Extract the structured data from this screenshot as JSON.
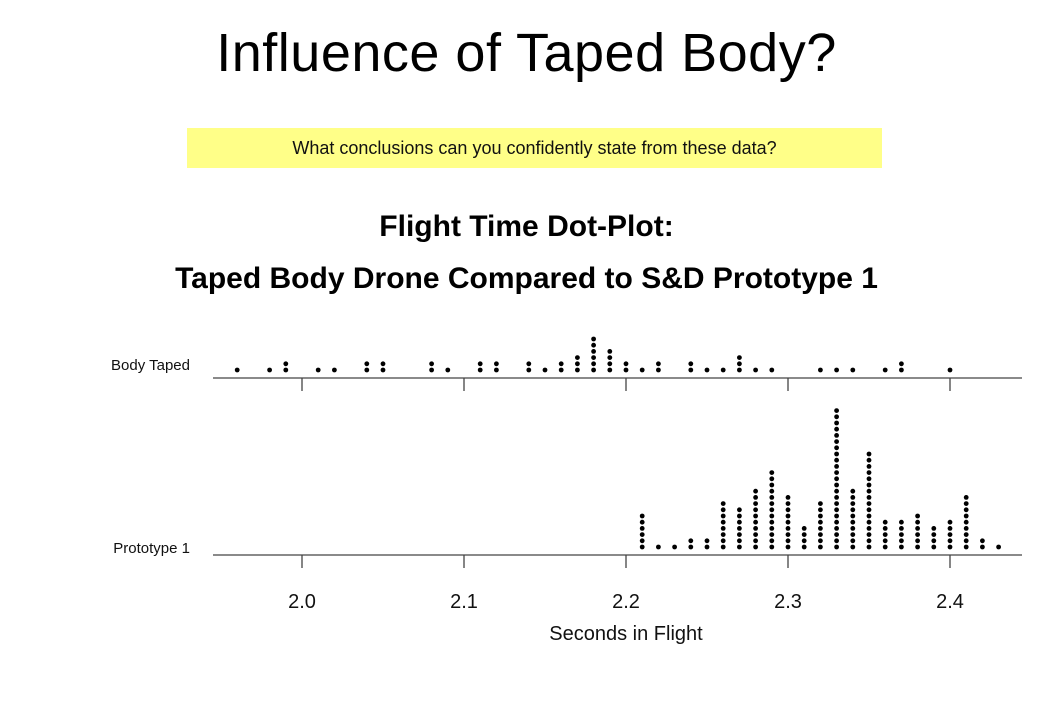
{
  "slide": {
    "title": "Influence of Taped Body?",
    "prompt": "What conclusions can you confidently state from these data?"
  },
  "chart_data": {
    "type": "scatter",
    "subtype": "dot-plot",
    "title": [
      "Flight Time Dot-Plot:",
      "Taped Body Drone Compared to S&D Prototype 1"
    ],
    "xlabel": "Seconds in Flight",
    "xlim": [
      1.96,
      2.44
    ],
    "xticks": [
      2.0,
      2.1,
      2.2,
      2.3,
      2.4
    ],
    "xtick_labels": [
      "2.0",
      "2.1",
      "2.2",
      "2.3",
      "2.4"
    ],
    "series": [
      {
        "name": "Body Taped",
        "points": [
          {
            "x": 1.96,
            "count": 1
          },
          {
            "x": 1.98,
            "count": 1
          },
          {
            "x": 1.99,
            "count": 2
          },
          {
            "x": 2.01,
            "count": 1
          },
          {
            "x": 2.02,
            "count": 1
          },
          {
            "x": 2.04,
            "count": 2
          },
          {
            "x": 2.05,
            "count": 2
          },
          {
            "x": 2.08,
            "count": 2
          },
          {
            "x": 2.09,
            "count": 1
          },
          {
            "x": 2.11,
            "count": 2
          },
          {
            "x": 2.12,
            "count": 2
          },
          {
            "x": 2.14,
            "count": 2
          },
          {
            "x": 2.15,
            "count": 1
          },
          {
            "x": 2.16,
            "count": 2
          },
          {
            "x": 2.17,
            "count": 3
          },
          {
            "x": 2.18,
            "count": 6
          },
          {
            "x": 2.19,
            "count": 4
          },
          {
            "x": 2.2,
            "count": 2
          },
          {
            "x": 2.21,
            "count": 1
          },
          {
            "x": 2.22,
            "count": 2
          },
          {
            "x": 2.24,
            "count": 2
          },
          {
            "x": 2.25,
            "count": 1
          },
          {
            "x": 2.26,
            "count": 1
          },
          {
            "x": 2.27,
            "count": 3
          },
          {
            "x": 2.28,
            "count": 1
          },
          {
            "x": 2.29,
            "count": 1
          },
          {
            "x": 2.32,
            "count": 1
          },
          {
            "x": 2.33,
            "count": 1
          },
          {
            "x": 2.34,
            "count": 1
          },
          {
            "x": 2.36,
            "count": 1
          },
          {
            "x": 2.37,
            "count": 2
          },
          {
            "x": 2.4,
            "count": 1
          }
        ]
      },
      {
        "name": "Prototype 1",
        "points": [
          {
            "x": 2.21,
            "count": 6
          },
          {
            "x": 2.22,
            "count": 1
          },
          {
            "x": 2.23,
            "count": 1
          },
          {
            "x": 2.24,
            "count": 2
          },
          {
            "x": 2.25,
            "count": 2
          },
          {
            "x": 2.26,
            "count": 8
          },
          {
            "x": 2.27,
            "count": 7
          },
          {
            "x": 2.28,
            "count": 10
          },
          {
            "x": 2.29,
            "count": 13
          },
          {
            "x": 2.3,
            "count": 9
          },
          {
            "x": 2.31,
            "count": 4
          },
          {
            "x": 2.32,
            "count": 8
          },
          {
            "x": 2.33,
            "count": 23
          },
          {
            "x": 2.34,
            "count": 10
          },
          {
            "x": 2.35,
            "count": 16
          },
          {
            "x": 2.36,
            "count": 5
          },
          {
            "x": 2.37,
            "count": 5
          },
          {
            "x": 2.38,
            "count": 6
          },
          {
            "x": 2.39,
            "count": 4
          },
          {
            "x": 2.4,
            "count": 5
          },
          {
            "x": 2.41,
            "count": 9
          },
          {
            "x": 2.42,
            "count": 2
          },
          {
            "x": 2.43,
            "count": 1
          }
        ]
      }
    ]
  }
}
